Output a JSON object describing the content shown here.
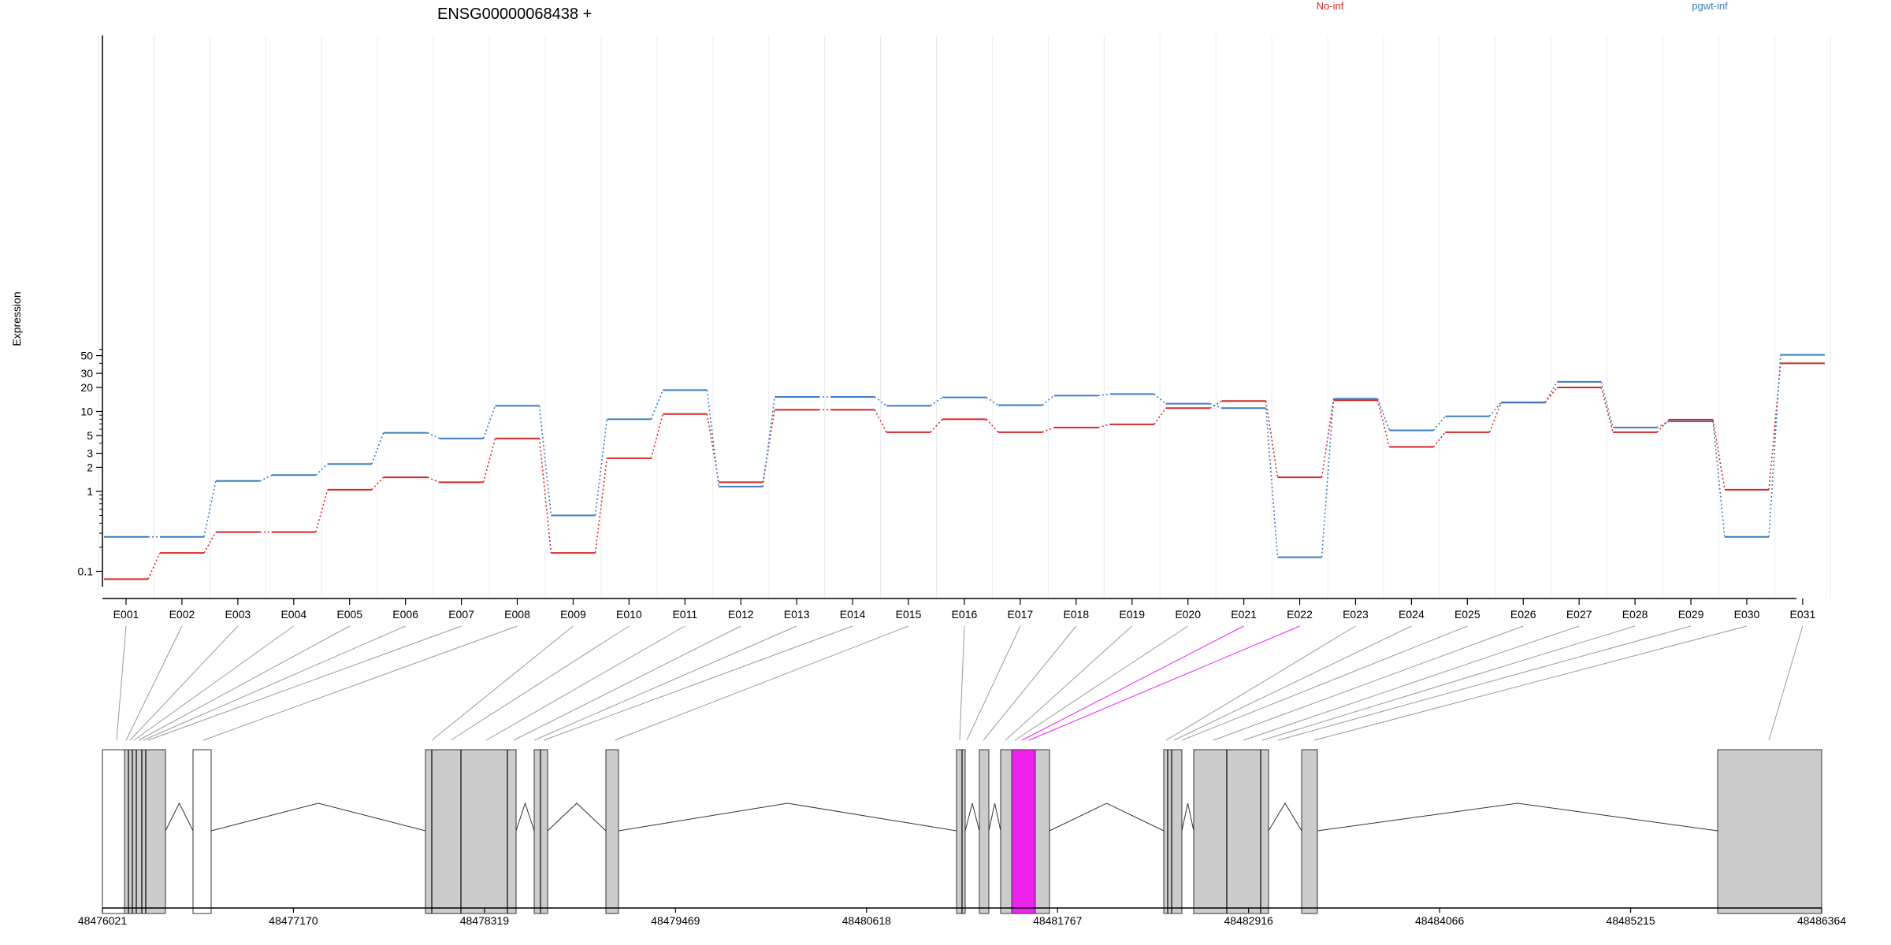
{
  "chart_data": {
    "type": "line",
    "title": "ENSG00000068438 +",
    "ylabel": "Expression",
    "xlabel": "",
    "y_scale": "log",
    "ylim": [
      0.08,
      60
    ],
    "y_ticks": [
      0.1,
      1,
      2,
      3,
      5,
      10,
      20,
      30,
      50
    ],
    "y_tick_labels": [
      "0.1",
      "1",
      "2",
      "3",
      "5",
      "10",
      "20",
      "30",
      "50"
    ],
    "categories": [
      "E001",
      "E002",
      "E003",
      "E004",
      "E005",
      "E006",
      "E007",
      "E008",
      "E009",
      "E010",
      "E011",
      "E012",
      "E013",
      "E014",
      "E015",
      "E016",
      "E017",
      "E018",
      "E019",
      "E020",
      "E021",
      "E022",
      "E023",
      "E024",
      "E025",
      "E026",
      "E027",
      "E028",
      "E029",
      "E030",
      "E031"
    ],
    "highlighted_exon": "E022",
    "legend_placement": "top",
    "grid": true,
    "series": [
      {
        "name": "No-inf",
        "color": "#d62728",
        "values": [
          0.08,
          0.17,
          0.31,
          0.31,
          1.05,
          1.5,
          1.3,
          4.6,
          0.17,
          2.6,
          9.3,
          1.3,
          10.5,
          10.5,
          5.5,
          8,
          5.5,
          6.3,
          6.9,
          11,
          13.5,
          1.5,
          13.8,
          3.6,
          5.5,
          12.9,
          20,
          5.5,
          7.9,
          1.05,
          40
        ]
      },
      {
        "name": "pgwt-inf",
        "color": "#3a7dc2",
        "values": [
          0.27,
          0.27,
          1.35,
          1.6,
          2.2,
          5.4,
          4.6,
          11.8,
          0.5,
          8,
          18.5,
          1.15,
          15.2,
          15.2,
          11.8,
          15,
          12,
          15.8,
          16.5,
          12.5,
          11,
          0.15,
          14.4,
          5.8,
          8.7,
          13,
          23.5,
          6.3,
          7.5,
          0.27,
          51
        ]
      }
    ],
    "genome_axis_labels": [
      "48476021",
      "48477170",
      "48478319",
      "48479469",
      "48480618",
      "48481767",
      "48482916",
      "48484066",
      "48485215",
      "48486364"
    ]
  },
  "colors": {
    "highlight": "#ee22ee",
    "exon_fill": "#cccccc",
    "exon_stroke": "#333333",
    "grid": "#ececec",
    "connector": "#9a9a9a"
  }
}
